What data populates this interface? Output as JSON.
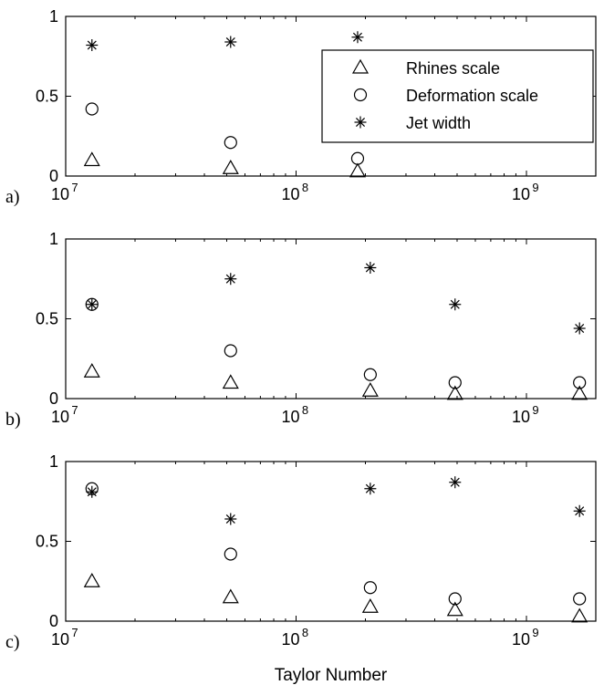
{
  "chart_data": [
    {
      "type": "scatter",
      "panel_label": "a)",
      "xscale": "log",
      "xlim": [
        10000000,
        2000000000
      ],
      "ylim": [
        0,
        1
      ],
      "x_tick_labels": [
        "10",
        "10",
        "10"
      ],
      "x_tick_exponents": [
        "7",
        "8",
        "9"
      ],
      "y_tick_labels": [
        "0",
        "0.5",
        "1"
      ],
      "grid": false,
      "legend": {
        "placement": "top-right",
        "entries": [
          {
            "label": "Rhines scale",
            "marker": "triangle"
          },
          {
            "label": "Deformation scale",
            "marker": "circle"
          },
          {
            "label": "Jet width",
            "marker": "asterisk"
          }
        ]
      },
      "series": [
        {
          "name": "Jet width",
          "marker": "asterisk",
          "x": [
            13000000,
            52000000,
            185000000
          ],
          "y": [
            0.82,
            0.84,
            0.87
          ]
        },
        {
          "name": "Deformation scale",
          "marker": "circle",
          "x": [
            13000000,
            52000000,
            185000000
          ],
          "y": [
            0.42,
            0.21,
            0.11
          ]
        },
        {
          "name": "Rhines scale",
          "marker": "triangle",
          "x": [
            13000000,
            52000000,
            185000000
          ],
          "y": [
            0.1,
            0.05,
            0.03
          ]
        }
      ]
    },
    {
      "type": "scatter",
      "panel_label": "b)",
      "xscale": "log",
      "xlim": [
        10000000,
        2000000000
      ],
      "ylim": [
        0,
        1
      ],
      "x_tick_labels": [
        "10",
        "10",
        "10"
      ],
      "x_tick_exponents": [
        "7",
        "8",
        "9"
      ],
      "y_tick_labels": [
        "0",
        "0.5",
        "1"
      ],
      "grid": false,
      "series": [
        {
          "name": "Jet width",
          "marker": "asterisk",
          "x": [
            13000000,
            52000000,
            210000000,
            490000000,
            1700000000
          ],
          "y": [
            0.59,
            0.75,
            0.82,
            0.59,
            0.44
          ]
        },
        {
          "name": "Deformation scale",
          "marker": "circle",
          "x": [
            13000000,
            52000000,
            210000000,
            490000000,
            1700000000
          ],
          "y": [
            0.59,
            0.3,
            0.15,
            0.1,
            0.1
          ]
        },
        {
          "name": "Rhines scale",
          "marker": "triangle",
          "x": [
            13000000,
            52000000,
            210000000,
            490000000,
            1700000000
          ],
          "y": [
            0.17,
            0.1,
            0.05,
            0.03,
            0.03
          ]
        }
      ]
    },
    {
      "type": "scatter",
      "panel_label": "c)",
      "xscale": "log",
      "xlim": [
        10000000,
        2000000000
      ],
      "ylim": [
        0,
        1
      ],
      "xlabel": "Taylor Number",
      "x_tick_labels": [
        "10",
        "10",
        "10"
      ],
      "x_tick_exponents": [
        "7",
        "8",
        "9"
      ],
      "y_tick_labels": [
        "0",
        "0.5",
        "1"
      ],
      "grid": false,
      "series": [
        {
          "name": "Jet width",
          "marker": "asterisk",
          "x": [
            13000000,
            52000000,
            210000000,
            490000000,
            1700000000
          ],
          "y": [
            0.81,
            0.64,
            0.83,
            0.87,
            0.69
          ]
        },
        {
          "name": "Deformation scale",
          "marker": "circle",
          "x": [
            13000000,
            52000000,
            210000000,
            490000000,
            1700000000
          ],
          "y": [
            0.83,
            0.42,
            0.21,
            0.14,
            0.14
          ]
        },
        {
          "name": "Rhines scale",
          "marker": "triangle",
          "x": [
            13000000,
            52000000,
            210000000,
            490000000,
            1700000000
          ],
          "y": [
            0.25,
            0.15,
            0.09,
            0.07,
            0.03
          ]
        }
      ]
    }
  ]
}
